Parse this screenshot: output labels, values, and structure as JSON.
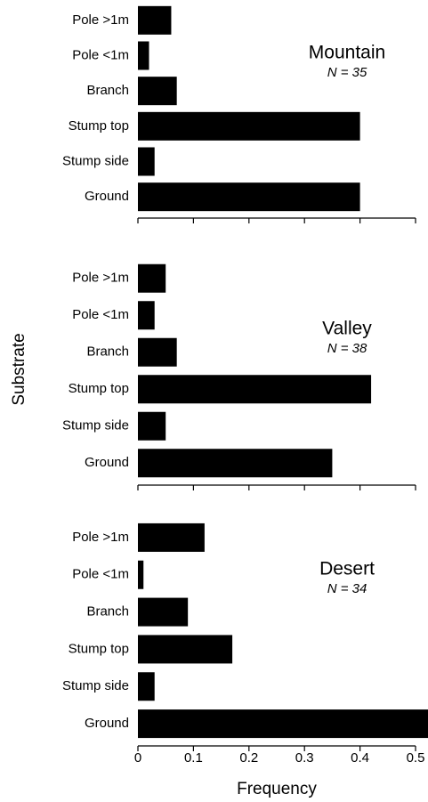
{
  "chart_data": [
    {
      "type": "barh",
      "title": "Mountain",
      "annotation": "N = 35",
      "categories": [
        "Pole >1m",
        "Pole <1m",
        "Branch",
        "Stump top",
        "Stump side",
        "Ground"
      ],
      "values": [
        0.06,
        0.02,
        0.07,
        0.4,
        0.03,
        0.4
      ],
      "color": "#000000",
      "xlim": [
        0,
        0.5
      ],
      "xticks": [
        0,
        0.1,
        0.2,
        0.3,
        0.4,
        0.5
      ],
      "show_tick_labels": false
    },
    {
      "type": "barh",
      "title": "Valley",
      "annotation": "N = 38",
      "ylabel": "Substrate",
      "categories": [
        "Pole >1m",
        "Pole <1m",
        "Branch",
        "Stump top",
        "Stump side",
        "Ground"
      ],
      "values": [
        0.05,
        0.03,
        0.07,
        0.42,
        0.05,
        0.35
      ],
      "color": "#000000",
      "xlim": [
        0,
        0.5
      ],
      "xticks": [
        0,
        0.1,
        0.2,
        0.3,
        0.4,
        0.5
      ],
      "show_tick_labels": false
    },
    {
      "type": "barh",
      "title": "Desert",
      "annotation": "N = 34",
      "xlabel": "Frequency",
      "categories": [
        "Pole >1m",
        "Pole <1m",
        "Branch",
        "Stump top",
        "Stump side",
        "Ground"
      ],
      "values": [
        0.12,
        0.01,
        0.09,
        0.17,
        0.03,
        0.54
      ],
      "color": "#000000",
      "xlim": [
        0,
        0.5
      ],
      "xticks": [
        0,
        0.1,
        0.2,
        0.3,
        0.4,
        0.5
      ],
      "show_tick_labels": true
    }
  ]
}
